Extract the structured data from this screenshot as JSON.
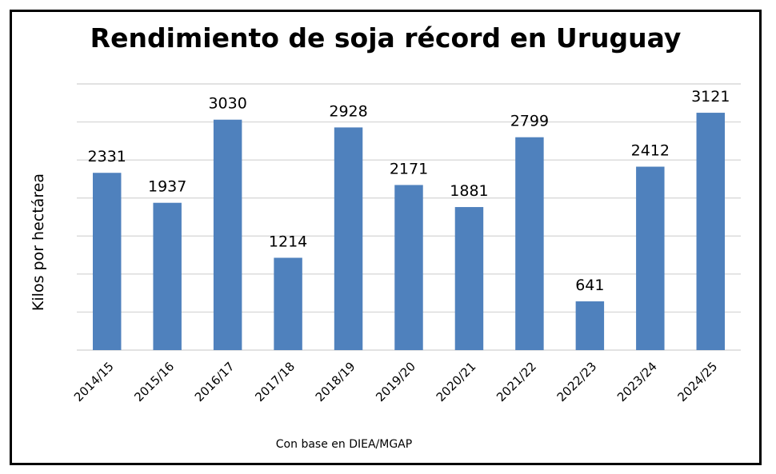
{
  "chart_data": {
    "type": "bar",
    "title": "Rendimiento de soja récord en Uruguay",
    "ylabel": "Kilos por hectárea",
    "xlabel": "",
    "source": "Con base en DIEA/MGAP",
    "categories": [
      "2014/15",
      "2015/16",
      "2016/17",
      "2017/18",
      "2018/19",
      "2019/20",
      "2020/21",
      "2021/22",
      "2022/23",
      "2023/24",
      "2024/25"
    ],
    "values": [
      2331,
      1937,
      3030,
      1214,
      2928,
      2171,
      1881,
      2799,
      641,
      2412,
      3121
    ],
    "ylim": [
      0,
      3500
    ],
    "grid": true,
    "legend": "none",
    "bar_color": "#4f81bd",
    "grid_color": "#d9d9d9"
  }
}
